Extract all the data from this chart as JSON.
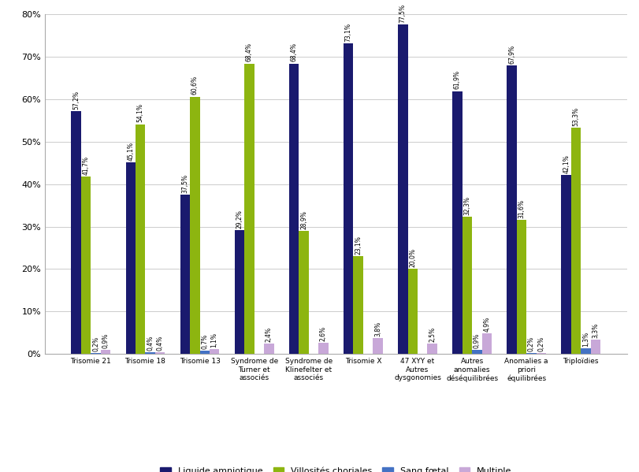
{
  "categories": [
    "Trisomie 21",
    "Trisomie 18",
    "Trisomie 13",
    "Syndrome de\nTurner et\nassociés",
    "Syndrome de\nKlinefelter et\nassociés",
    "Trisomie X",
    "47 XYY et\nAutres\ndysgonomies",
    "Autres\nanomalies\ndéséquilibrées",
    "Anomalies a\npriori\néquilibrées",
    "Triploïdies"
  ],
  "series": {
    "Liquide amniotique": [
      57.2,
      45.1,
      37.5,
      29.2,
      68.4,
      73.1,
      77.5,
      61.9,
      67.9,
      42.1
    ],
    "Villosités choriales": [
      41.7,
      54.1,
      60.6,
      68.4,
      28.9,
      23.1,
      20.0,
      32.3,
      31.6,
      53.3
    ],
    "Sang fœtal": [
      0.2,
      0.4,
      0.7,
      0.0,
      0.0,
      0.0,
      0.0,
      0.9,
      0.2,
      1.3
    ],
    "Multiple": [
      0.9,
      0.4,
      1.1,
      2.4,
      2.6,
      3.8,
      2.5,
      4.9,
      0.2,
      3.3
    ]
  },
  "colors": {
    "Liquide amniotique": "#1A1A6E",
    "Villosités choriales": "#8DB510",
    "Sang fœtal": "#4472C4",
    "Multiple": "#C8A8D8"
  },
  "ylim": [
    0,
    80
  ],
  "yticks": [
    0,
    10,
    20,
    30,
    40,
    50,
    60,
    70,
    80
  ],
  "bar_width": 0.18,
  "figsize": [
    8.12,
    5.99
  ],
  "dpi": 100
}
